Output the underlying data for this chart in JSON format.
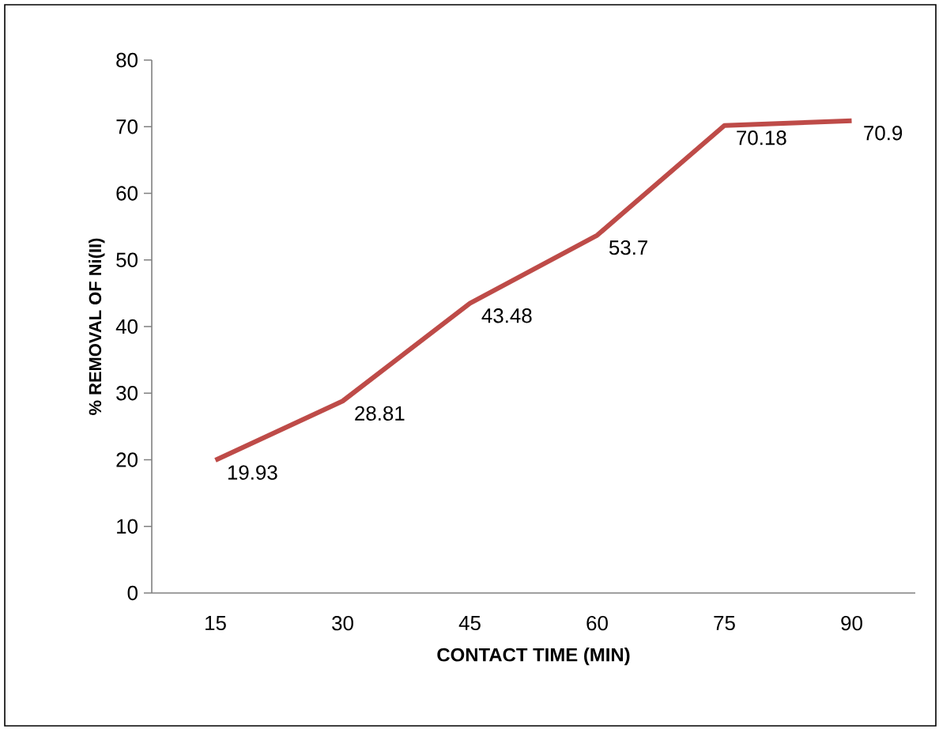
{
  "chart_data": {
    "type": "line",
    "xlabel": "CONTACT TIME (MIN)",
    "ylabel": "% REMOVAL OF Ni(II)",
    "categories": [
      "15",
      "30",
      "45",
      "60",
      "75",
      "90"
    ],
    "series": [
      {
        "color": "#be4b48",
        "values": [
          19.93,
          28.81,
          43.48,
          53.7,
          70.18,
          70.9
        ]
      }
    ],
    "ylim": [
      0,
      80
    ],
    "yticks": [
      0,
      10,
      20,
      30,
      40,
      50,
      60,
      70,
      80
    ],
    "data_labels": true,
    "grid": false,
    "marker": "none",
    "line_style": "solid"
  }
}
